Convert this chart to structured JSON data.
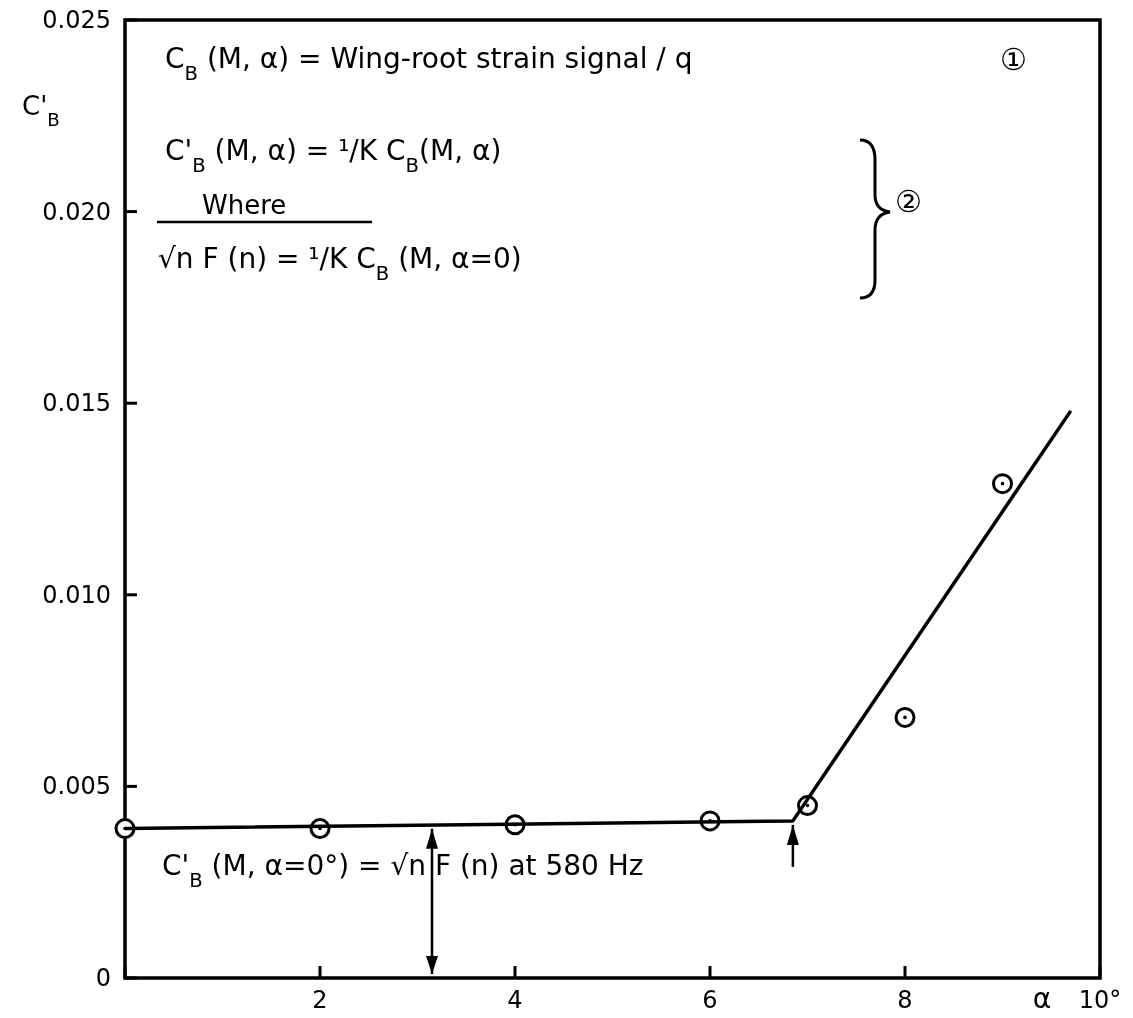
{
  "chart_data": {
    "type": "scatter",
    "xlabel": "α",
    "ylabel": "C'$_{B}$",
    "xlim": [
      0,
      10
    ],
    "ylim": [
      0,
      0.025
    ],
    "xticks": [
      {
        "value": 0,
        "label": null
      },
      2,
      4,
      6,
      8,
      {
        "value": 10,
        "label": "10°"
      }
    ],
    "yticks": [
      0,
      0.005,
      {
        "value": 0.01,
        "label": "0.010"
      },
      0.015,
      {
        "value": 0.02,
        "label": "0.020"
      },
      0.025
    ],
    "grid": false,
    "series": [
      {
        "color": "#000000",
        "marker": "circle",
        "x": [
          0,
          2,
          4,
          6,
          7,
          8,
          9
        ],
        "values": [
          0.0039,
          0.0039,
          0.004,
          0.0041,
          0.0045,
          0.0068,
          0.0129
        ]
      },
      {
        "type": "line",
        "color": "#000000",
        "line_style": "solid",
        "x": [
          0,
          6.85,
          9.7
        ],
        "values": [
          0.0039,
          0.0041,
          0.0148
        ]
      }
    ],
    "annotations": [
      "C$_{B}$ (M, α) = Wing-root strain signal / q",
      "①",
      "C'$_{B}$ (M, α) = ¹/K C$_{B}$(M, α)",
      "Where",
      "√n F (n) = ¹/K C$_{B}$ (M, α=0)",
      "②",
      "C'$_{B}$ (M, α=0°) = √n F (n) at 580 Hz"
    ]
  }
}
